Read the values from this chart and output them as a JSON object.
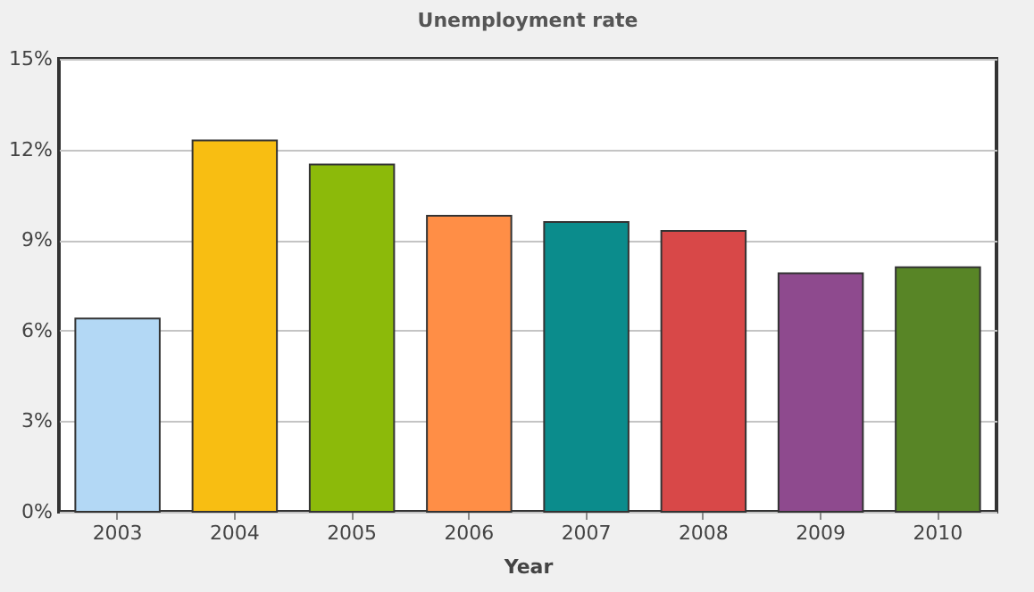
{
  "chart_data": {
    "type": "bar",
    "title": "Unemployment rate",
    "xlabel": "Year",
    "categories": [
      "2003",
      "2004",
      "2005",
      "2006",
      "2007",
      "2008",
      "2009",
      "2010"
    ],
    "values": [
      6.4,
      12.3,
      11.5,
      9.8,
      9.6,
      9.3,
      7.9,
      8.1
    ],
    "colors": [
      "#b3d8f5",
      "#f8be12",
      "#8cba0a",
      "#ff8e46",
      "#0b8c8c",
      "#d84848",
      "#8e4a8e",
      "#588526"
    ],
    "ylim": [
      0,
      15
    ],
    "yticks": [
      {
        "value": 0,
        "label": "0%"
      },
      {
        "value": 3,
        "label": "3%"
      },
      {
        "value": 6,
        "label": "6%"
      },
      {
        "value": 9,
        "label": "9%"
      },
      {
        "value": 12,
        "label": "12%"
      },
      {
        "value": 15,
        "label": "15%"
      }
    ],
    "grid": "y"
  }
}
